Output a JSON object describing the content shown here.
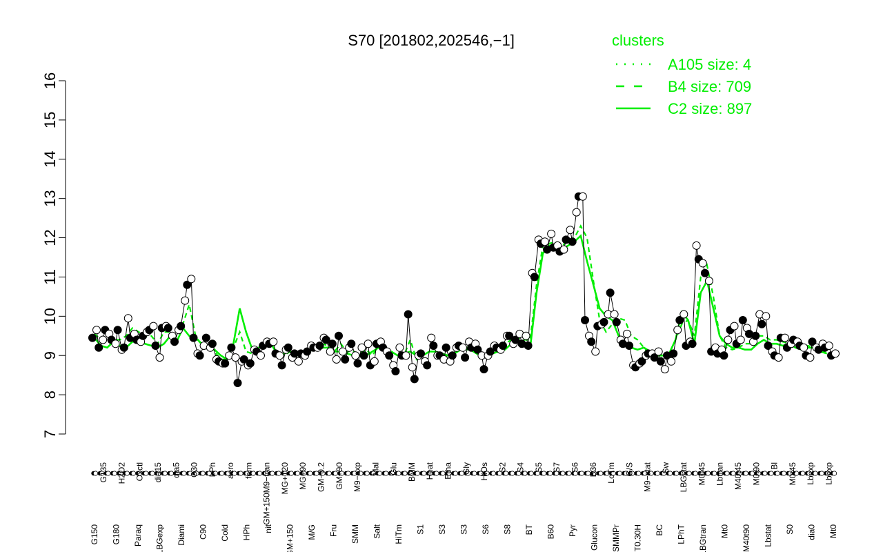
{
  "chart_data": {
    "type": "line",
    "title": "S70 [201802,202546,−1]",
    "xlabel": "",
    "ylabel": "",
    "ylim": [
      7,
      16
    ],
    "yticks": [
      7,
      8,
      9,
      10,
      11,
      12,
      13,
      14,
      15,
      16
    ],
    "grid": false,
    "legend": {
      "title": "clusters",
      "placement": "top-right",
      "color": "#00ee00",
      "entries": [
        {
          "label": "A105 size: 4",
          "style": "dotted"
        },
        {
          "label": "B4 size: 709",
          "style": "dashed"
        },
        {
          "label": "C2 size: 897",
          "style": "solid"
        }
      ]
    },
    "x_tick_labels_top": [
      "G135",
      "H2O2",
      "Oxctl",
      "dia15",
      "dia5",
      "C30",
      "LPh",
      "aero",
      "ferm",
      "GM+150M9−tran",
      "MG+120",
      "MG+90",
      "GM−0.2",
      "GM+90",
      "M9−exp",
      "Mal",
      "Glu",
      "BMM",
      "Heat",
      "Etha",
      "Gly",
      "HiOs",
      "S2",
      "S4",
      "S5",
      "S7",
      "S6",
      "B36",
      "LoTm",
      "G/S",
      "M9−stat",
      "Sw",
      "LBGstat",
      "M0t45",
      "Lbtran",
      "M40t45",
      "M0t90",
      "Bl",
      "M0t45",
      "Lbexp",
      "Lbexp"
    ],
    "x_tick_labels_bottom": [
      "G150",
      "G180",
      "Paraq",
      "LBGexp",
      "Diami",
      "C90",
      "Cold",
      "HPh",
      "nit",
      "GM+150",
      "M/G",
      "Fru",
      "SMM",
      "Salt",
      "HiTm",
      "S1",
      "S3",
      "S3",
      "S6",
      "S8",
      "BT",
      "B60",
      "Pyr",
      "Glucon",
      "SMMPr",
      "T0.30H",
      "BC",
      "LPhT",
      "LBGtran",
      "Mt0",
      "M40t90",
      "Lbstat",
      "S0",
      "dia0",
      "Mt0"
    ],
    "points": [
      [
        9.45,
        9.65
      ],
      [
        9.2,
        9.4
      ],
      [
        9.65,
        9.55
      ],
      [
        9.4,
        9.3
      ],
      [
        9.65,
        9.15
      ],
      [
        9.2,
        9.95
      ],
      [
        9.45,
        9.55
      ],
      [
        9.4,
        9.35
      ],
      [
        9.5,
        9.6
      ],
      [
        9.65,
        9.75
      ],
      [
        9.25,
        8.95
      ],
      [
        9.7,
        9.75
      ],
      [
        9.7,
        9.5
      ],
      [
        9.35,
        9.65
      ],
      [
        9.75,
        10.4
      ],
      [
        10.8,
        10.95
      ],
      [
        9.45,
        9.05
      ],
      [
        9.0,
        9.25
      ],
      [
        9.45,
        9.2
      ],
      [
        9.3,
        8.9
      ],
      [
        8.85,
        8.8
      ],
      [
        8.8,
        9.0
      ],
      [
        9.2,
        8.95
      ],
      [
        8.3,
        8.85
      ],
      [
        8.9,
        8.75
      ],
      [
        8.8,
        9.15
      ],
      [
        9.1,
        9.0
      ],
      [
        9.25,
        9.35
      ],
      [
        9.3,
        9.35
      ],
      [
        9.05,
        9.0
      ],
      [
        8.75,
        9.15
      ],
      [
        9.2,
        8.95
      ],
      [
        9.05,
        8.85
      ],
      [
        9.05,
        9.0
      ],
      [
        9.1,
        9.25
      ],
      [
        9.2,
        9.2
      ],
      [
        9.25,
        9.45
      ],
      [
        9.4,
        9.1
      ],
      [
        9.3,
        8.9
      ],
      [
        9.5,
        9.1
      ],
      [
        8.9,
        9.2
      ],
      [
        9.3,
        9.0
      ],
      [
        8.8,
        9.2
      ],
      [
        9.0,
        9.3
      ],
      [
        8.75,
        8.85
      ],
      [
        9.3,
        9.35
      ],
      [
        9.2,
        9.1
      ],
      [
        9.0,
        8.75
      ],
      [
        8.6,
        9.2
      ],
      [
        9.0,
        9.0
      ],
      [
        10.05,
        8.7
      ],
      [
        8.4,
        9.0
      ],
      [
        9.05,
        8.85
      ],
      [
        8.75,
        9.45
      ],
      [
        9.25,
        9.0
      ],
      [
        9.0,
        8.9
      ],
      [
        9.2,
        8.85
      ],
      [
        9.0,
        9.2
      ],
      [
        9.25,
        9.2
      ],
      [
        8.95,
        9.35
      ],
      [
        9.2,
        9.3
      ],
      [
        9.15,
        9.0
      ],
      [
        8.65,
        9.0
      ],
      [
        9.1,
        9.25
      ],
      [
        9.2,
        9.15
      ],
      [
        9.25,
        9.5
      ],
      [
        9.5,
        9.3
      ],
      [
        9.4,
        9.55
      ],
      [
        9.3,
        9.5
      ],
      [
        9.25,
        11.1
      ],
      [
        11.0,
        11.95
      ],
      [
        11.85,
        11.9
      ],
      [
        11.7,
        12.1
      ],
      [
        11.75,
        11.8
      ],
      [
        11.65,
        11.7
      ],
      [
        11.95,
        12.2
      ],
      [
        11.9,
        12.65
      ],
      [
        13.05,
        13.05
      ],
      [
        9.9,
        9.5
      ],
      [
        9.35,
        9.1
      ],
      [
        9.75,
        9.8
      ],
      [
        9.85,
        10.05
      ],
      [
        10.6,
        10.05
      ],
      [
        9.85,
        9.4
      ],
      [
        9.3,
        9.55
      ],
      [
        9.25,
        8.75
      ],
      [
        8.7,
        8.8
      ],
      [
        8.85,
        9.0
      ],
      [
        9.05,
        9.05
      ],
      [
        8.95,
        9.1
      ],
      [
        8.85,
        8.65
      ],
      [
        9.0,
        8.85
      ],
      [
        9.05,
        9.65
      ],
      [
        9.9,
        10.05
      ],
      [
        9.25,
        9.35
      ],
      [
        9.3,
        11.8
      ],
      [
        11.45,
        11.35
      ],
      [
        11.1,
        10.9
      ],
      [
        9.1,
        9.2
      ],
      [
        9.05,
        9.15
      ],
      [
        9.0,
        9.4
      ],
      [
        9.65,
        9.75
      ],
      [
        9.3,
        9.4
      ],
      [
        9.9,
        9.7
      ],
      [
        9.55,
        9.35
      ],
      [
        9.5,
        10.05
      ],
      [
        9.8,
        10.0
      ],
      [
        9.25,
        9.1
      ],
      [
        9.0,
        8.95
      ],
      [
        9.45,
        9.45
      ],
      [
        9.2,
        9.3
      ],
      [
        9.4,
        9.35
      ],
      [
        9.25,
        9.2
      ],
      [
        9.0,
        8.95
      ],
      [
        9.35,
        9.2
      ],
      [
        9.15,
        9.3
      ],
      [
        9.2,
        9.25
      ],
      [
        9.0,
        9.05
      ]
    ],
    "series": [
      {
        "style": "solid",
        "values": [
          9.45,
          9.25,
          9.2,
          9.35,
          9.25,
          9.2,
          9.35,
          9.35,
          9.3,
          9.25,
          9.2,
          9.3,
          9.5,
          9.35,
          9.7,
          9.5,
          9.45,
          9.3,
          9.2,
          9.15,
          9.0,
          8.9,
          9.3,
          10.2,
          9.6,
          9.15,
          9.2,
          9.3,
          9.3,
          9.0,
          9.05,
          9.1,
          9.0,
          9.0,
          9.1,
          9.2,
          9.2,
          9.2,
          9.1,
          9.1,
          9.05,
          9.0,
          9.0,
          9.0,
          9.1,
          9.2,
          9.15,
          9.1,
          9.0,
          9.05,
          9.1,
          9.0,
          9.0,
          9.1,
          9.1,
          9.05,
          9.0,
          9.05,
          9.15,
          9.2,
          9.1,
          9.0,
          9.0,
          9.05,
          9.1,
          9.15,
          9.3,
          9.4,
          9.3,
          9.2,
          10.6,
          11.6,
          11.8,
          11.75,
          11.7,
          11.8,
          11.9,
          12.05,
          11.4,
          10.8,
          10.2,
          10.0,
          9.9,
          9.5,
          9.3,
          9.2,
          9.15,
          9.2,
          9.1,
          9.0,
          9.0,
          9.05,
          9.4,
          10.1,
          9.9,
          9.3,
          10.6,
          10.9,
          10.2,
          9.5,
          9.3,
          9.2,
          9.2,
          9.15,
          9.15,
          9.3,
          9.4,
          9.3,
          9.3,
          9.25,
          9.3,
          9.2,
          9.15,
          9.2,
          9.2,
          9.1,
          9.05
        ]
      },
      {
        "style": "dashed",
        "values": [
          9.55,
          9.4,
          9.45,
          9.4,
          9.4,
          9.5,
          9.7,
          9.6,
          9.5,
          9.5,
          9.3,
          9.6,
          9.6,
          9.5,
          9.8,
          10.3,
          9.5,
          9.25,
          9.25,
          9.1,
          8.9,
          8.9,
          9.2,
          9.6,
          9.1,
          9.05,
          9.15,
          9.3,
          9.3,
          9.05,
          9.0,
          9.1,
          9.0,
          9.0,
          9.2,
          9.2,
          9.3,
          9.25,
          9.1,
          9.3,
          9.1,
          9.1,
          9.05,
          9.15,
          9.0,
          9.25,
          9.2,
          9.1,
          9.0,
          9.0,
          9.4,
          8.9,
          9.0,
          9.1,
          9.1,
          8.95,
          9.0,
          9.05,
          9.2,
          9.15,
          9.15,
          9.0,
          8.95,
          9.1,
          9.2,
          9.3,
          9.4,
          9.45,
          9.4,
          9.4,
          10.8,
          11.8,
          11.85,
          11.9,
          11.8,
          11.9,
          12.0,
          12.3,
          12.0,
          10.9,
          9.9,
          9.6,
          9.8,
          9.95,
          9.9,
          9.5,
          9.4,
          9.2,
          9.0,
          8.9,
          8.95,
          9.05,
          9.4,
          9.8,
          9.9,
          9.5,
          11.0,
          11.3,
          10.5,
          9.5,
          9.2,
          9.15,
          9.2,
          9.3,
          9.3,
          9.5,
          9.5,
          9.4,
          9.4,
          9.35,
          9.3,
          9.25,
          9.2,
          9.25,
          9.2,
          9.15,
          9.05
        ]
      }
    ]
  }
}
